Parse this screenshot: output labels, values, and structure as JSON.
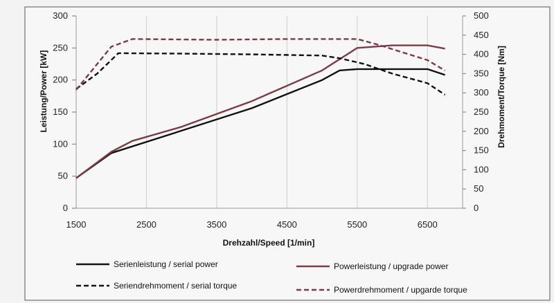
{
  "chart_data": {
    "type": "line",
    "xlabel": "Drehzahl/Speed [1/min]",
    "ylabel_left": "Leistung/Power [kW]",
    "ylabel_right": "Drehmoment/Torque [Nm]",
    "x_ticks": [
      1500,
      2500,
      3500,
      4500,
      5500,
      6500
    ],
    "xlim": [
      1500,
      7000
    ],
    "ylim_left": [
      0,
      300
    ],
    "y_ticks_left": [
      0,
      50,
      100,
      150,
      200,
      250,
      300
    ],
    "ylim_right": [
      0,
      500
    ],
    "y_ticks_right": [
      0,
      50,
      100,
      150,
      200,
      250,
      300,
      350,
      400,
      450,
      500
    ],
    "series": [
      {
        "name": "Serienleistung / serial power",
        "axis": "left",
        "color": "#111111",
        "dashed": false,
        "points": [
          [
            1500,
            47
          ],
          [
            2000,
            86
          ],
          [
            3000,
            121
          ],
          [
            4000,
            156
          ],
          [
            5000,
            200
          ],
          [
            5250,
            215
          ],
          [
            5500,
            217
          ],
          [
            6500,
            217
          ],
          [
            6750,
            208
          ]
        ]
      },
      {
        "name": "Powerleistung / upgrade power",
        "axis": "left",
        "color": "#7a3b42",
        "dashed": false,
        "points": [
          [
            1500,
            47
          ],
          [
            2000,
            88
          ],
          [
            2300,
            105
          ],
          [
            3000,
            127
          ],
          [
            4000,
            167
          ],
          [
            5000,
            215
          ],
          [
            5500,
            250
          ],
          [
            6000,
            254
          ],
          [
            6500,
            254
          ],
          [
            6750,
            249
          ]
        ]
      },
      {
        "name": "Seriendrehmoment / serial torque",
        "axis": "right",
        "color": "#111111",
        "dashed": true,
        "points": [
          [
            1500,
            310
          ],
          [
            1800,
            350
          ],
          [
            2100,
            403
          ],
          [
            3000,
            402
          ],
          [
            4000,
            400
          ],
          [
            5000,
            397
          ],
          [
            5250,
            390
          ],
          [
            5600,
            375
          ],
          [
            6000,
            350
          ],
          [
            6500,
            325
          ],
          [
            6750,
            295
          ]
        ]
      },
      {
        "name": "Powerdrehmoment / upgarde torque",
        "axis": "right",
        "color": "#7a3b42",
        "dashed": true,
        "points": [
          [
            1500,
            308
          ],
          [
            2000,
            420
          ],
          [
            2300,
            440
          ],
          [
            3500,
            438
          ],
          [
            4500,
            440
          ],
          [
            5500,
            440
          ],
          [
            5800,
            425
          ],
          [
            6500,
            385
          ],
          [
            6750,
            358
          ]
        ]
      }
    ],
    "legend": [
      "Serienleistung / serial power",
      "Powerleistung / upgrade power",
      "Seriendrehmoment / serial torque",
      "Powerdrehmoment / upgarde torque"
    ]
  }
}
